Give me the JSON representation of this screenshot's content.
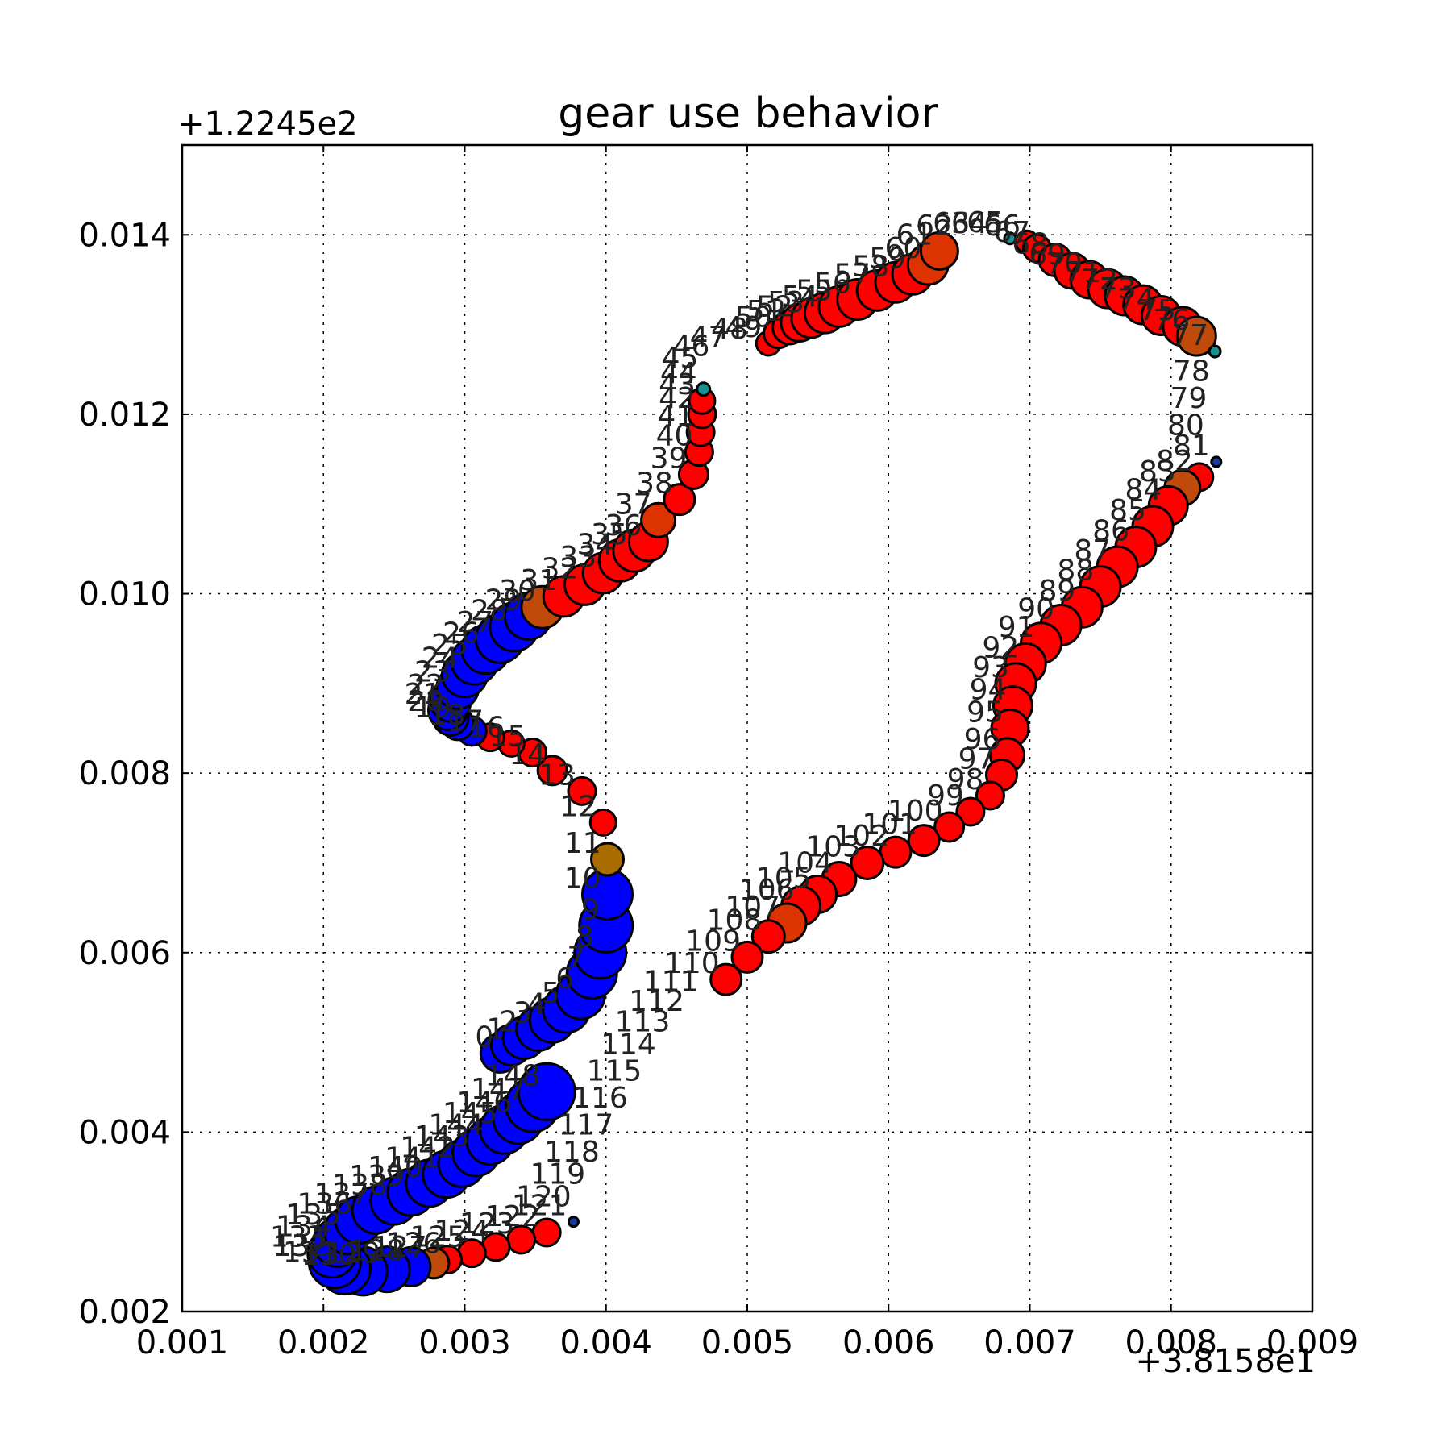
{
  "chart_data": {
    "type": "scatter",
    "title": "gear use behavior",
    "x_offset_label": "+3.8158e1",
    "y_offset_label": "+1.2245e2",
    "xlim": [
      0.001,
      0.009
    ],
    "ylim": [
      0.002,
      0.015
    ],
    "x_ticks": [
      0.001,
      0.002,
      0.003,
      0.004,
      0.005,
      0.006,
      0.007,
      0.008,
      0.009
    ],
    "x_tick_labels": [
      "0.001",
      "0.002",
      "0.003",
      "0.004",
      "0.005",
      "0.006",
      "0.007",
      "0.008",
      "0.009"
    ],
    "y_ticks": [
      0.002,
      0.004,
      0.006,
      0.008,
      0.01,
      0.012,
      0.014
    ],
    "y_tick_labels": [
      "0.002",
      "0.004",
      "0.006",
      "0.008",
      "0.010",
      "0.012",
      "0.014"
    ],
    "grid": true,
    "colors": {
      "red": "#ff0000",
      "blue": "#0000ff",
      "orange_red": "#dd3300",
      "brown": "#c04a0a",
      "olive": "#a86c00",
      "teal": "#1a8f8f",
      "dark_blue": "#1a3aa0"
    },
    "points": [
      {
        "label": "0",
        "x": 0.00325,
        "y": 0.00488,
        "c": "blue",
        "s": 24
      },
      {
        "label": "1",
        "x": 0.00333,
        "y": 0.00497,
        "c": "blue",
        "s": 25
      },
      {
        "label": "2",
        "x": 0.00342,
        "y": 0.00505,
        "c": "blue",
        "s": 26
      },
      {
        "label": "3",
        "x": 0.00352,
        "y": 0.00515,
        "c": "blue",
        "s": 27
      },
      {
        "label": "4",
        "x": 0.00362,
        "y": 0.00525,
        "c": "blue",
        "s": 28
      },
      {
        "label": "5",
        "x": 0.00372,
        "y": 0.00537,
        "c": "blue",
        "s": 29
      },
      {
        "label": "6",
        "x": 0.00382,
        "y": 0.00553,
        "c": "blue",
        "s": 30
      },
      {
        "label": "7",
        "x": 0.0039,
        "y": 0.00577,
        "c": "blue",
        "s": 31
      },
      {
        "label": "8",
        "x": 0.00396,
        "y": 0.006,
        "c": "blue",
        "s": 32
      },
      {
        "label": "9",
        "x": 0.004,
        "y": 0.0063,
        "c": "blue",
        "s": 33
      },
      {
        "label": "10",
        "x": 0.00401,
        "y": 0.00665,
        "c": "blue",
        "s": 31
      },
      {
        "label": "11",
        "x": 0.00401,
        "y": 0.00704,
        "c": "olive",
        "s": 20
      },
      {
        "label": "12",
        "x": 0.00398,
        "y": 0.00745,
        "c": "red",
        "s": 16
      },
      {
        "label": "13",
        "x": 0.00383,
        "y": 0.0078,
        "c": "red",
        "s": 17
      },
      {
        "label": "14",
        "x": 0.00362,
        "y": 0.00803,
        "c": "red",
        "s": 18
      },
      {
        "label": "15",
        "x": 0.00348,
        "y": 0.00823,
        "c": "red",
        "s": 17
      },
      {
        "label": "16",
        "x": 0.00333,
        "y": 0.00833,
        "c": "red",
        "s": 16
      },
      {
        "label": "17",
        "x": 0.00318,
        "y": 0.0084,
        "c": "red",
        "s": 17
      },
      {
        "label": "18",
        "x": 0.00305,
        "y": 0.00847,
        "c": "blue",
        "s": 18
      },
      {
        "label": "19",
        "x": 0.00295,
        "y": 0.00855,
        "c": "blue",
        "s": 20
      },
      {
        "label": "20",
        "x": 0.0029,
        "y": 0.00862,
        "c": "blue",
        "s": 22
      },
      {
        "label": "21",
        "x": 0.00288,
        "y": 0.0087,
        "c": "blue",
        "s": 24
      },
      {
        "label": "22",
        "x": 0.0029,
        "y": 0.0088,
        "c": "blue",
        "s": 25
      },
      {
        "label": "23",
        "x": 0.00295,
        "y": 0.00895,
        "c": "blue",
        "s": 26
      },
      {
        "label": "24",
        "x": 0.003,
        "y": 0.0091,
        "c": "blue",
        "s": 28
      },
      {
        "label": "25",
        "x": 0.00307,
        "y": 0.00925,
        "c": "blue",
        "s": 29
      },
      {
        "label": "26",
        "x": 0.00315,
        "y": 0.00938,
        "c": "blue",
        "s": 30
      },
      {
        "label": "27",
        "x": 0.00325,
        "y": 0.0095,
        "c": "blue",
        "s": 30
      },
      {
        "label": "28",
        "x": 0.00335,
        "y": 0.00963,
        "c": "blue",
        "s": 30
      },
      {
        "label": "29",
        "x": 0.00345,
        "y": 0.00975,
        "c": "blue",
        "s": 29
      },
      {
        "label": "30",
        "x": 0.00355,
        "y": 0.00985,
        "c": "brown",
        "s": 26
      },
      {
        "label": "31",
        "x": 0.0037,
        "y": 0.00997,
        "c": "red",
        "s": 25
      },
      {
        "label": "32",
        "x": 0.00385,
        "y": 0.0101,
        "c": "red",
        "s": 25
      },
      {
        "label": "33",
        "x": 0.00398,
        "y": 0.01023,
        "c": "red",
        "s": 25
      },
      {
        "label": "34",
        "x": 0.0041,
        "y": 0.01037,
        "c": "red",
        "s": 26
      },
      {
        "label": "35",
        "x": 0.0042,
        "y": 0.01048,
        "c": "red",
        "s": 26
      },
      {
        "label": "36",
        "x": 0.0043,
        "y": 0.01058,
        "c": "red",
        "s": 24
      },
      {
        "label": "37",
        "x": 0.00437,
        "y": 0.01082,
        "c": "orange_red",
        "s": 21
      },
      {
        "label": "38",
        "x": 0.00452,
        "y": 0.01105,
        "c": "red",
        "s": 19
      },
      {
        "label": "39",
        "x": 0.00462,
        "y": 0.01133,
        "c": "red",
        "s": 18
      },
      {
        "label": "40",
        "x": 0.00466,
        "y": 0.01158,
        "c": "red",
        "s": 17
      },
      {
        "label": "41",
        "x": 0.00467,
        "y": 0.0118,
        "c": "red",
        "s": 17
      },
      {
        "label": "42",
        "x": 0.00468,
        "y": 0.012,
        "c": "red",
        "s": 17
      },
      {
        "label": "43",
        "x": 0.00468,
        "y": 0.01215,
        "c": "red",
        "s": 16
      },
      {
        "label": "44",
        "x": 0.00469,
        "y": 0.01228,
        "c": "teal",
        "s": 8
      },
      {
        "label": "45",
        "x": 0.0047,
        "y": 0.01245,
        "c": "red",
        "s": 0
      },
      {
        "label": "46",
        "x": 0.00478,
        "y": 0.01258,
        "c": "red",
        "s": 0
      },
      {
        "label": "47",
        "x": 0.0049,
        "y": 0.01268,
        "c": "red",
        "s": 0
      },
      {
        "label": "48",
        "x": 0.00505,
        "y": 0.01277,
        "c": "red",
        "s": 0
      },
      {
        "label": "49",
        "x": 0.00515,
        "y": 0.01279,
        "c": "red",
        "s": 15
      },
      {
        "label": "50",
        "x": 0.00522,
        "y": 0.0129,
        "c": "red",
        "s": 18
      },
      {
        "label": "51",
        "x": 0.0053,
        "y": 0.01297,
        "c": "red",
        "s": 21
      },
      {
        "label": "52",
        "x": 0.00537,
        "y": 0.01302,
        "c": "red",
        "s": 23
      },
      {
        "label": "53",
        "x": 0.00545,
        "y": 0.01307,
        "c": "red",
        "s": 24
      },
      {
        "label": "54",
        "x": 0.00555,
        "y": 0.01313,
        "c": "red",
        "s": 25
      },
      {
        "label": "55",
        "x": 0.00565,
        "y": 0.0132,
        "c": "red",
        "s": 25
      },
      {
        "label": "56",
        "x": 0.00578,
        "y": 0.01328,
        "c": "red",
        "s": 25
      },
      {
        "label": "57",
        "x": 0.00592,
        "y": 0.01338,
        "c": "red",
        "s": 25
      },
      {
        "label": "58",
        "x": 0.00605,
        "y": 0.01347,
        "c": "red",
        "s": 25
      },
      {
        "label": "59",
        "x": 0.00617,
        "y": 0.01356,
        "c": "red",
        "s": 25
      },
      {
        "label": "60",
        "x": 0.00628,
        "y": 0.01367,
        "c": "orange_red",
        "s": 25
      },
      {
        "label": "61",
        "x": 0.00636,
        "y": 0.01382,
        "c": "orange_red",
        "s": 23
      },
      {
        "label": "62",
        "x": 0.0065,
        "y": 0.01392,
        "c": "red",
        "s": 0
      },
      {
        "label": "63",
        "x": 0.00662,
        "y": 0.01395,
        "c": "red",
        "s": 0
      },
      {
        "label": "64",
        "x": 0.00675,
        "y": 0.01395,
        "c": "red",
        "s": 0
      },
      {
        "label": "65",
        "x": 0.00686,
        "y": 0.01396,
        "c": "teal",
        "s": 7
      },
      {
        "label": "66",
        "x": 0.00698,
        "y": 0.01392,
        "c": "red",
        "s": 14
      },
      {
        "label": "67",
        "x": 0.00705,
        "y": 0.01385,
        "c": "red",
        "s": 17
      },
      {
        "label": "68",
        "x": 0.00718,
        "y": 0.01372,
        "c": "red",
        "s": 20
      },
      {
        "label": "69",
        "x": 0.0073,
        "y": 0.0136,
        "c": "red",
        "s": 22
      },
      {
        "label": "70",
        "x": 0.00742,
        "y": 0.0135,
        "c": "red",
        "s": 23
      },
      {
        "label": "71",
        "x": 0.00755,
        "y": 0.0134,
        "c": "red",
        "s": 24
      },
      {
        "label": "72",
        "x": 0.00767,
        "y": 0.01332,
        "c": "red",
        "s": 24
      },
      {
        "label": "73",
        "x": 0.0078,
        "y": 0.01322,
        "c": "red",
        "s": 24
      },
      {
        "label": "74",
        "x": 0.00793,
        "y": 0.0131,
        "c": "red",
        "s": 24
      },
      {
        "label": "75",
        "x": 0.00808,
        "y": 0.01298,
        "c": "red",
        "s": 24
      },
      {
        "label": "76",
        "x": 0.00818,
        "y": 0.01287,
        "c": "brown",
        "s": 24
      },
      {
        "label": "77",
        "x": 0.00831,
        "y": 0.0127,
        "c": "teal",
        "s": 7
      },
      {
        "label": "78",
        "x": 0.00832,
        "y": 0.0123,
        "c": "red",
        "s": 0
      },
      {
        "label": "79",
        "x": 0.0083,
        "y": 0.012,
        "c": "red",
        "s": 0
      },
      {
        "label": "80",
        "x": 0.00828,
        "y": 0.0117,
        "c": "red",
        "s": 0
      },
      {
        "label": "81",
        "x": 0.00832,
        "y": 0.01147,
        "c": "dark_blue",
        "s": 6
      },
      {
        "label": "82",
        "x": 0.0082,
        "y": 0.0113,
        "c": "red",
        "s": 17
      },
      {
        "label": "83",
        "x": 0.00808,
        "y": 0.01118,
        "c": "brown",
        "s": 22
      },
      {
        "label": "84",
        "x": 0.00798,
        "y": 0.01098,
        "c": "red",
        "s": 24
      },
      {
        "label": "85",
        "x": 0.00787,
        "y": 0.01075,
        "c": "red",
        "s": 25
      },
      {
        "label": "86",
        "x": 0.00775,
        "y": 0.01052,
        "c": "red",
        "s": 25
      },
      {
        "label": "87",
        "x": 0.00762,
        "y": 0.0103,
        "c": "red",
        "s": 25
      },
      {
        "label": "88",
        "x": 0.0075,
        "y": 0.01008,
        "c": "red",
        "s": 25
      },
      {
        "label": "89",
        "x": 0.00737,
        "y": 0.00985,
        "c": "red",
        "s": 25
      },
      {
        "label": "90",
        "x": 0.00722,
        "y": 0.00965,
        "c": "red",
        "s": 25
      },
      {
        "label": "91",
        "x": 0.00708,
        "y": 0.00945,
        "c": "red",
        "s": 25
      },
      {
        "label": "92",
        "x": 0.00697,
        "y": 0.00922,
        "c": "red",
        "s": 25
      },
      {
        "label": "93",
        "x": 0.0069,
        "y": 0.009,
        "c": "red",
        "s": 25
      },
      {
        "label": "94",
        "x": 0.00688,
        "y": 0.00875,
        "c": "red",
        "s": 24
      },
      {
        "label": "95",
        "x": 0.00686,
        "y": 0.0085,
        "c": "red",
        "s": 23
      },
      {
        "label": "96",
        "x": 0.00684,
        "y": 0.0082,
        "c": "red",
        "s": 21
      },
      {
        "label": "97",
        "x": 0.0068,
        "y": 0.00798,
        "c": "red",
        "s": 19
      },
      {
        "label": "98",
        "x": 0.00672,
        "y": 0.00775,
        "c": "red",
        "s": 17
      },
      {
        "label": "99",
        "x": 0.00658,
        "y": 0.00757,
        "c": "red",
        "s": 17
      },
      {
        "label": "100",
        "x": 0.00643,
        "y": 0.0074,
        "c": "red",
        "s": 18
      },
      {
        "label": "101",
        "x": 0.00625,
        "y": 0.00725,
        "c": "red",
        "s": 19
      },
      {
        "label": "102",
        "x": 0.00605,
        "y": 0.00712,
        "c": "red",
        "s": 19
      },
      {
        "label": "103",
        "x": 0.00585,
        "y": 0.007,
        "c": "red",
        "s": 20
      },
      {
        "label": "104",
        "x": 0.00565,
        "y": 0.00682,
        "c": "red",
        "s": 21
      },
      {
        "label": "105",
        "x": 0.0055,
        "y": 0.00665,
        "c": "red",
        "s": 23
      },
      {
        "label": "106",
        "x": 0.00538,
        "y": 0.00652,
        "c": "red",
        "s": 24
      },
      {
        "label": "107",
        "x": 0.00528,
        "y": 0.00633,
        "c": "orange_red",
        "s": 24
      },
      {
        "label": "108",
        "x": 0.00515,
        "y": 0.00618,
        "c": "red",
        "s": 20
      },
      {
        "label": "109",
        "x": 0.005,
        "y": 0.00595,
        "c": "red",
        "s": 19
      },
      {
        "label": "110",
        "x": 0.00485,
        "y": 0.0057,
        "c": "red",
        "s": 19
      },
      {
        "label": "111",
        "x": 0.0047,
        "y": 0.0055,
        "c": "red",
        "s": 0
      },
      {
        "label": "112",
        "x": 0.0046,
        "y": 0.00528,
        "c": "red",
        "s": 0
      },
      {
        "label": "113",
        "x": 0.0045,
        "y": 0.00505,
        "c": "red",
        "s": 0
      },
      {
        "label": "114",
        "x": 0.0044,
        "y": 0.0048,
        "c": "red",
        "s": 0
      },
      {
        "label": "115",
        "x": 0.0043,
        "y": 0.0045,
        "c": "red",
        "s": 0
      },
      {
        "label": "116",
        "x": 0.0042,
        "y": 0.0042,
        "c": "red",
        "s": 0
      },
      {
        "label": "117",
        "x": 0.0041,
        "y": 0.0039,
        "c": "red",
        "s": 0
      },
      {
        "label": "118",
        "x": 0.004,
        "y": 0.0036,
        "c": "red",
        "s": 0
      },
      {
        "label": "119",
        "x": 0.0039,
        "y": 0.00335,
        "c": "red",
        "s": 0
      },
      {
        "label": "120",
        "x": 0.0038,
        "y": 0.0031,
        "c": "red",
        "s": 0
      },
      {
        "label": "121",
        "x": 0.00377,
        "y": 0.003,
        "c": "dark_blue",
        "s": 6
      },
      {
        "label": "122",
        "x": 0.00358,
        "y": 0.00288,
        "c": "red",
        "s": 17
      },
      {
        "label": "123",
        "x": 0.0034,
        "y": 0.0028,
        "c": "red",
        "s": 17
      },
      {
        "label": "124",
        "x": 0.00322,
        "y": 0.00272,
        "c": "red",
        "s": 17
      },
      {
        "label": "125",
        "x": 0.00305,
        "y": 0.00265,
        "c": "red",
        "s": 17
      },
      {
        "label": "126",
        "x": 0.00288,
        "y": 0.00258,
        "c": "red",
        "s": 17
      },
      {
        "label": "127",
        "x": 0.00278,
        "y": 0.00254,
        "c": "brown",
        "s": 19
      },
      {
        "label": "128",
        "x": 0.00262,
        "y": 0.0025,
        "c": "blue",
        "s": 24
      },
      {
        "label": "129",
        "x": 0.00245,
        "y": 0.00247,
        "c": "blue",
        "s": 28
      },
      {
        "label": "130",
        "x": 0.00228,
        "y": 0.00245,
        "c": "blue",
        "s": 30
      },
      {
        "label": "131",
        "x": 0.00215,
        "y": 0.00248,
        "c": "blue",
        "s": 32
      },
      {
        "label": "132",
        "x": 0.00208,
        "y": 0.00255,
        "c": "blue",
        "s": 32
      },
      {
        "label": "133",
        "x": 0.00206,
        "y": 0.00265,
        "c": "blue",
        "s": 30
      },
      {
        "label": "134",
        "x": 0.0021,
        "y": 0.00277,
        "c": "blue",
        "s": 30
      },
      {
        "label": "135",
        "x": 0.00217,
        "y": 0.0029,
        "c": "blue",
        "s": 29
      },
      {
        "label": "136",
        "x": 0.00225,
        "y": 0.00302,
        "c": "blue",
        "s": 29
      },
      {
        "label": "137",
        "x": 0.00237,
        "y": 0.00313,
        "c": "blue",
        "s": 29
      },
      {
        "label": "138",
        "x": 0.0025,
        "y": 0.00323,
        "c": "blue",
        "s": 29
      },
      {
        "label": "139",
        "x": 0.00262,
        "y": 0.00333,
        "c": "blue",
        "s": 29
      },
      {
        "label": "140",
        "x": 0.00275,
        "y": 0.00343,
        "c": "blue",
        "s": 29
      },
      {
        "label": "141",
        "x": 0.00287,
        "y": 0.00353,
        "c": "blue",
        "s": 29
      },
      {
        "label": "142",
        "x": 0.00298,
        "y": 0.00365,
        "c": "blue",
        "s": 29
      },
      {
        "label": "143",
        "x": 0.00308,
        "y": 0.00377,
        "c": "blue",
        "s": 29
      },
      {
        "label": "144",
        "x": 0.00318,
        "y": 0.0039,
        "c": "blue",
        "s": 29
      },
      {
        "label": "145",
        "x": 0.00328,
        "y": 0.00403,
        "c": "blue",
        "s": 30
      },
      {
        "label": "146",
        "x": 0.00338,
        "y": 0.00415,
        "c": "blue",
        "s": 31
      },
      {
        "label": "147",
        "x": 0.00348,
        "y": 0.0043,
        "c": "blue",
        "s": 33
      },
      {
        "label": "148",
        "x": 0.00358,
        "y": 0.00445,
        "c": "blue",
        "s": 35
      }
    ]
  }
}
